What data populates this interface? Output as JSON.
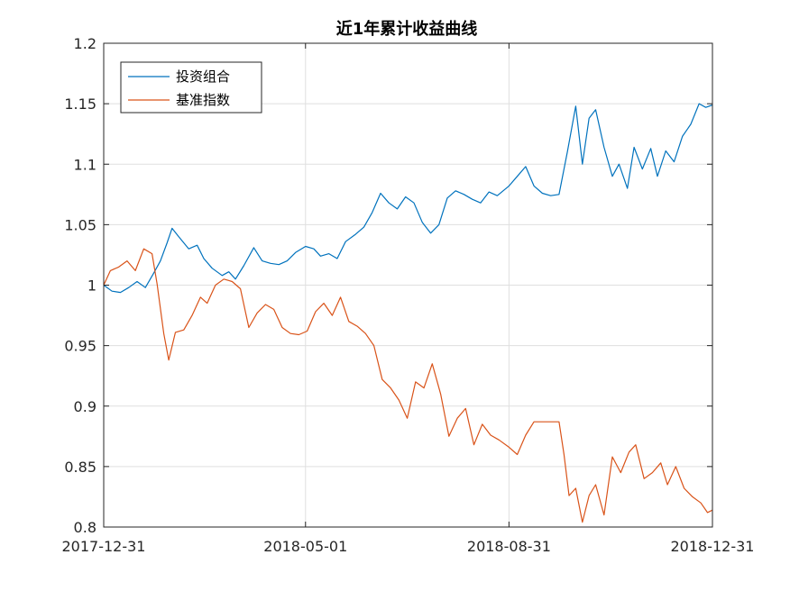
{
  "chart_data": {
    "type": "line",
    "title": "近1年累计收益曲线",
    "xlabel": "",
    "ylabel": "",
    "x_range": [
      "2017-12-31",
      "2018-12-31"
    ],
    "x_ticks": [
      "2017-12-31",
      "2018-05-01",
      "2018-08-31",
      "2018-12-31"
    ],
    "ylim": [
      0.8,
      1.2
    ],
    "y_ticks": [
      "0.8",
      "0.85",
      "0.9",
      "0.95",
      "1",
      "1.05",
      "1.1",
      "1.15",
      "1.2"
    ],
    "grid": true,
    "legend_position": "top-left",
    "series": [
      {
        "name": "投资组合",
        "color": "#0072bd",
        "points": [
          [
            "2017-12-31",
            1.0
          ],
          [
            "2018-01-05",
            0.995
          ],
          [
            "2018-01-10",
            0.994
          ],
          [
            "2018-01-15",
            0.998
          ],
          [
            "2018-01-20",
            1.003
          ],
          [
            "2018-01-25",
            0.998
          ],
          [
            "2018-01-30",
            1.01
          ],
          [
            "2018-02-03",
            1.02
          ],
          [
            "2018-02-07",
            1.035
          ],
          [
            "2018-02-10",
            1.047
          ],
          [
            "2018-02-14",
            1.04
          ],
          [
            "2018-02-20",
            1.03
          ],
          [
            "2018-02-25",
            1.033
          ],
          [
            "2018-03-01",
            1.022
          ],
          [
            "2018-03-06",
            1.014
          ],
          [
            "2018-03-12",
            1.008
          ],
          [
            "2018-03-16",
            1.011
          ],
          [
            "2018-03-20",
            1.005
          ],
          [
            "2018-03-25",
            1.016
          ],
          [
            "2018-03-31",
            1.031
          ],
          [
            "2018-04-05",
            1.02
          ],
          [
            "2018-04-10",
            1.018
          ],
          [
            "2018-04-15",
            1.017
          ],
          [
            "2018-04-20",
            1.02
          ],
          [
            "2018-04-25",
            1.027
          ],
          [
            "2018-05-01",
            1.032
          ],
          [
            "2018-05-06",
            1.03
          ],
          [
            "2018-05-10",
            1.024
          ],
          [
            "2018-05-15",
            1.026
          ],
          [
            "2018-05-20",
            1.022
          ],
          [
            "2018-05-25",
            1.036
          ],
          [
            "2018-05-31",
            1.042
          ],
          [
            "2018-06-05",
            1.048
          ],
          [
            "2018-06-10",
            1.06
          ],
          [
            "2018-06-15",
            1.076
          ],
          [
            "2018-06-20",
            1.068
          ],
          [
            "2018-06-25",
            1.063
          ],
          [
            "2018-06-30",
            1.073
          ],
          [
            "2018-07-05",
            1.068
          ],
          [
            "2018-07-10",
            1.052
          ],
          [
            "2018-07-15",
            1.043
          ],
          [
            "2018-07-20",
            1.05
          ],
          [
            "2018-07-25",
            1.072
          ],
          [
            "2018-07-30",
            1.078
          ],
          [
            "2018-08-04",
            1.075
          ],
          [
            "2018-08-09",
            1.071
          ],
          [
            "2018-08-14",
            1.068
          ],
          [
            "2018-08-19",
            1.077
          ],
          [
            "2018-08-24",
            1.074
          ],
          [
            "2018-08-31",
            1.082
          ],
          [
            "2018-09-05",
            1.09
          ],
          [
            "2018-09-10",
            1.098
          ],
          [
            "2018-09-15",
            1.082
          ],
          [
            "2018-09-20",
            1.076
          ],
          [
            "2018-09-25",
            1.074
          ],
          [
            "2018-09-30",
            1.075
          ],
          [
            "2018-10-05",
            1.11
          ],
          [
            "2018-10-10",
            1.148
          ],
          [
            "2018-10-14",
            1.1
          ],
          [
            "2018-10-18",
            1.138
          ],
          [
            "2018-10-22",
            1.145
          ],
          [
            "2018-10-27",
            1.114
          ],
          [
            "2018-11-01",
            1.09
          ],
          [
            "2018-11-05",
            1.1
          ],
          [
            "2018-11-10",
            1.08
          ],
          [
            "2018-11-14",
            1.114
          ],
          [
            "2018-11-19",
            1.096
          ],
          [
            "2018-11-24",
            1.113
          ],
          [
            "2018-11-28",
            1.09
          ],
          [
            "2018-12-03",
            1.111
          ],
          [
            "2018-12-08",
            1.102
          ],
          [
            "2018-12-13",
            1.123
          ],
          [
            "2018-12-18",
            1.133
          ],
          [
            "2018-12-23",
            1.15
          ],
          [
            "2018-12-27",
            1.147
          ],
          [
            "2018-12-31",
            1.149
          ]
        ]
      },
      {
        "name": "基准指数",
        "color": "#d95319",
        "points": [
          [
            "2017-12-31",
            1.0
          ],
          [
            "2018-01-04",
            1.012
          ],
          [
            "2018-01-09",
            1.015
          ],
          [
            "2018-01-14",
            1.02
          ],
          [
            "2018-01-19",
            1.012
          ],
          [
            "2018-01-24",
            1.03
          ],
          [
            "2018-01-29",
            1.026
          ],
          [
            "2018-02-01",
            1.001
          ],
          [
            "2018-02-05",
            0.96
          ],
          [
            "2018-02-08",
            0.938
          ],
          [
            "2018-02-12",
            0.961
          ],
          [
            "2018-02-17",
            0.963
          ],
          [
            "2018-02-22",
            0.975
          ],
          [
            "2018-02-27",
            0.99
          ],
          [
            "2018-03-03",
            0.985
          ],
          [
            "2018-03-08",
            1.0
          ],
          [
            "2018-03-13",
            1.005
          ],
          [
            "2018-03-18",
            1.003
          ],
          [
            "2018-03-23",
            0.997
          ],
          [
            "2018-03-28",
            0.965
          ],
          [
            "2018-04-02",
            0.977
          ],
          [
            "2018-04-07",
            0.984
          ],
          [
            "2018-04-12",
            0.98
          ],
          [
            "2018-04-17",
            0.965
          ],
          [
            "2018-04-22",
            0.96
          ],
          [
            "2018-04-27",
            0.959
          ],
          [
            "2018-05-02",
            0.962
          ],
          [
            "2018-05-07",
            0.978
          ],
          [
            "2018-05-12",
            0.985
          ],
          [
            "2018-05-17",
            0.975
          ],
          [
            "2018-05-22",
            0.99
          ],
          [
            "2018-05-27",
            0.97
          ],
          [
            "2018-06-01",
            0.966
          ],
          [
            "2018-06-06",
            0.96
          ],
          [
            "2018-06-11",
            0.95
          ],
          [
            "2018-06-16",
            0.922
          ],
          [
            "2018-06-21",
            0.915
          ],
          [
            "2018-06-26",
            0.905
          ],
          [
            "2018-07-01",
            0.89
          ],
          [
            "2018-07-06",
            0.92
          ],
          [
            "2018-07-11",
            0.915
          ],
          [
            "2018-07-16",
            0.935
          ],
          [
            "2018-07-21",
            0.91
          ],
          [
            "2018-07-26",
            0.875
          ],
          [
            "2018-07-31",
            0.89
          ],
          [
            "2018-08-05",
            0.898
          ],
          [
            "2018-08-10",
            0.868
          ],
          [
            "2018-08-15",
            0.885
          ],
          [
            "2018-08-20",
            0.876
          ],
          [
            "2018-08-25",
            0.872
          ],
          [
            "2018-08-31",
            0.866
          ],
          [
            "2018-09-05",
            0.86
          ],
          [
            "2018-09-10",
            0.876
          ],
          [
            "2018-09-15",
            0.887
          ],
          [
            "2018-09-20",
            0.887
          ],
          [
            "2018-09-25",
            0.887
          ],
          [
            "2018-09-30",
            0.887
          ],
          [
            "2018-10-03",
            0.86
          ],
          [
            "2018-10-06",
            0.826
          ],
          [
            "2018-10-10",
            0.832
          ],
          [
            "2018-10-14",
            0.804
          ],
          [
            "2018-10-18",
            0.826
          ],
          [
            "2018-10-22",
            0.835
          ],
          [
            "2018-10-27",
            0.81
          ],
          [
            "2018-11-01",
            0.858
          ],
          [
            "2018-11-06",
            0.845
          ],
          [
            "2018-11-11",
            0.862
          ],
          [
            "2018-11-15",
            0.868
          ],
          [
            "2018-11-20",
            0.84
          ],
          [
            "2018-11-25",
            0.845
          ],
          [
            "2018-11-30",
            0.853
          ],
          [
            "2018-12-04",
            0.835
          ],
          [
            "2018-12-09",
            0.85
          ],
          [
            "2018-12-14",
            0.832
          ],
          [
            "2018-12-19",
            0.825
          ],
          [
            "2018-12-24",
            0.82
          ],
          [
            "2018-12-28",
            0.812
          ],
          [
            "2018-12-31",
            0.814
          ]
        ]
      }
    ]
  }
}
